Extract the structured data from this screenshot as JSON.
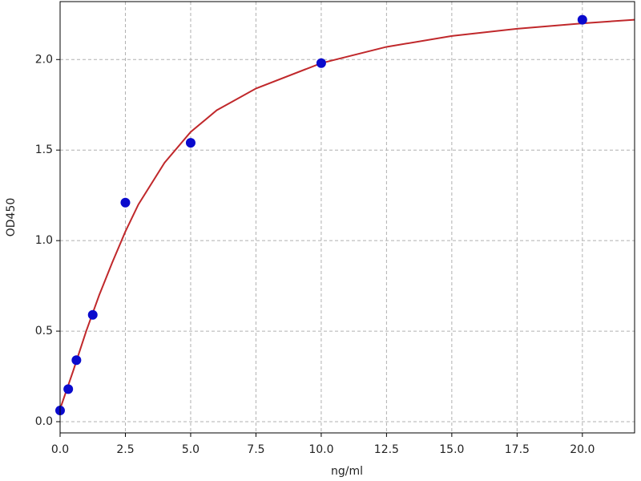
{
  "chart_data": {
    "type": "scatter",
    "x_label": "ng/ml",
    "y_label": "OD450",
    "xlim": [
      0,
      22
    ],
    "ylim": [
      -0.062,
      2.32
    ],
    "xticks": [
      {
        "value": 0,
        "label": "0.0"
      },
      2.5,
      {
        "value": 5,
        "label": "5.0"
      },
      7.5,
      {
        "value": 10,
        "label": "10.0"
      },
      12.5,
      {
        "value": 15,
        "label": "15.0"
      },
      17.5,
      {
        "value": 20,
        "label": "20.0"
      }
    ],
    "yticks": [
      {
        "value": 0,
        "label": "0.0"
      },
      0.5,
      {
        "value": 1,
        "label": "1.0"
      },
      1.5,
      {
        "value": 2,
        "label": "2.0"
      }
    ],
    "grid": true,
    "series": [
      {
        "style": "line",
        "color": "#c0282b",
        "x": [
          0,
          0.5,
          1,
          1.5,
          2,
          2.5,
          3,
          4,
          5,
          6,
          7.5,
          10,
          12.5,
          15,
          17.5,
          20,
          22
        ],
        "values": [
          0.07,
          0.28,
          0.5,
          0.7,
          0.88,
          1.05,
          1.2,
          1.43,
          1.6,
          1.72,
          1.84,
          1.98,
          2.07,
          2.13,
          2.17,
          2.2,
          2.22
        ]
      },
      {
        "style": "marker",
        "color": "#0a0acd",
        "x": [
          0,
          0.3125,
          0.625,
          1.25,
          2.5,
          5,
          10,
          20
        ],
        "values": [
          0.062,
          0.18,
          0.34,
          0.59,
          1.21,
          1.54,
          1.98,
          2.22
        ]
      }
    ]
  }
}
